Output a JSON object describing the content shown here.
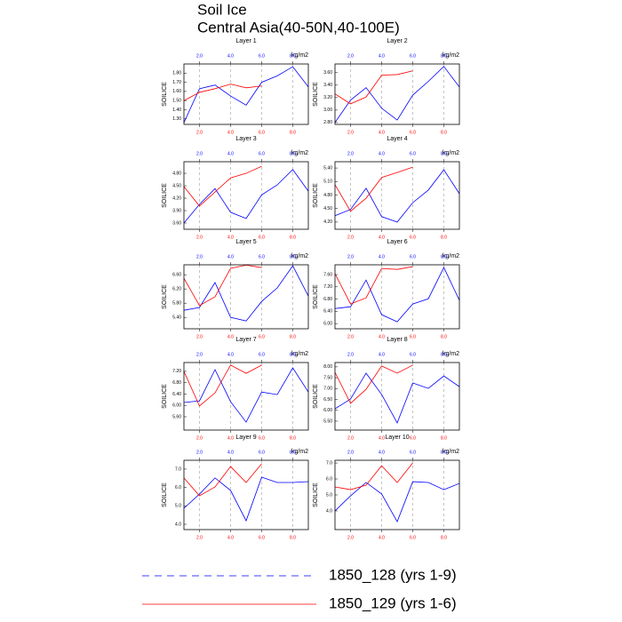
{
  "title": "Soil Ice",
  "subtitle": "Central Asia(40-50N,40-100E)",
  "chart_data": [
    {
      "type": "line",
      "title": "Layer 1",
      "ylabel": "SOILICE",
      "units": "kg/m2",
      "x": [
        1,
        2,
        3,
        4,
        5,
        6,
        7,
        8,
        9
      ],
      "xlim": [
        1,
        9
      ],
      "xticks": [
        {
          "value": 2,
          "label": "2.0"
        },
        {
          "value": 4,
          "label": "4.0"
        },
        {
          "value": 6,
          "label": "6.0"
        },
        {
          "value": 8,
          "label": "8.0"
        }
      ],
      "ylim": [
        1.24,
        1.9
      ],
      "yticks": [
        {
          "value": 1.3,
          "label": "1.30"
        },
        {
          "value": 1.4,
          "label": "1.40"
        },
        {
          "value": 1.5,
          "label": "1.50"
        },
        {
          "value": 1.6,
          "label": "1.60"
        },
        {
          "value": 1.7,
          "label": "1.70"
        },
        {
          "value": 1.8,
          "label": "1.80"
        }
      ],
      "series": [
        {
          "name": "1850_128 (yrs 1-9)",
          "color": "#0000ff",
          "values": [
            1.26,
            1.63,
            1.67,
            1.55,
            1.45,
            1.7,
            1.77,
            1.87,
            1.65
          ]
        },
        {
          "name": "1850_129 (yrs 1-6)",
          "color": "#ff0000",
          "values": [
            1.5,
            1.59,
            1.63,
            1.68,
            1.64,
            1.66,
            null,
            null,
            null
          ]
        }
      ]
    },
    {
      "type": "line",
      "title": "Layer 2",
      "ylabel": "SOILICE",
      "units": "kg/m2",
      "x": [
        1,
        2,
        3,
        4,
        5,
        6,
        7,
        8,
        9
      ],
      "xlim": [
        1,
        9
      ],
      "xticks": [
        {
          "value": 2,
          "label": "2.0"
        },
        {
          "value": 4,
          "label": "4.0"
        },
        {
          "value": 6,
          "label": "6.0"
        },
        {
          "value": 8,
          "label": "8.0"
        }
      ],
      "ylim": [
        2.77,
        3.74
      ],
      "yticks": [
        {
          "value": 2.8,
          "label": "2.80"
        },
        {
          "value": 3.0,
          "label": "3.00"
        },
        {
          "value": 3.2,
          "label": "3.20"
        },
        {
          "value": 3.4,
          "label": "3.40"
        },
        {
          "value": 3.6,
          "label": "3.60"
        }
      ],
      "series": [
        {
          "name": "1850_128 (yrs 1-9)",
          "color": "#0000ff",
          "values": [
            2.8,
            3.16,
            3.36,
            3.03,
            2.84,
            3.24,
            3.46,
            3.7,
            3.37
          ]
        },
        {
          "name": "1850_129 (yrs 1-6)",
          "color": "#ff0000",
          "values": [
            3.26,
            3.1,
            3.21,
            3.56,
            3.57,
            3.63,
            null,
            null,
            null
          ]
        }
      ]
    },
    {
      "type": "line",
      "title": "Layer 3",
      "ylabel": "SOILICE",
      "units": "kg/m2",
      "x": [
        1,
        2,
        3,
        4,
        5,
        6,
        7,
        8,
        9
      ],
      "xlim": [
        1,
        9
      ],
      "xticks": [
        {
          "value": 2,
          "label": "2.0"
        },
        {
          "value": 4,
          "label": "4.0"
        },
        {
          "value": 6,
          "label": "6.0"
        },
        {
          "value": 8,
          "label": "8.0"
        }
      ],
      "ylim": [
        3.45,
        5.08
      ],
      "yticks": [
        {
          "value": 3.6,
          "label": "3.60"
        },
        {
          "value": 3.9,
          "label": "3.90"
        },
        {
          "value": 4.2,
          "label": "4.20"
        },
        {
          "value": 4.5,
          "label": "4.50"
        },
        {
          "value": 4.8,
          "label": "4.80"
        }
      ],
      "series": [
        {
          "name": "1850_128 (yrs 1-9)",
          "color": "#0000ff",
          "values": [
            3.6,
            4.05,
            4.43,
            3.86,
            3.71,
            4.28,
            4.52,
            4.89,
            4.37
          ]
        },
        {
          "name": "1850_129 (yrs 1-6)",
          "color": "#ff0000",
          "values": [
            4.48,
            4.01,
            4.35,
            4.69,
            4.8,
            4.97,
            null,
            null,
            null
          ]
        }
      ]
    },
    {
      "type": "line",
      "title": "Layer 4",
      "ylabel": "SOILICE",
      "units": "kg/m2",
      "x": [
        1,
        2,
        3,
        4,
        5,
        6,
        7,
        8,
        9
      ],
      "xlim": [
        1,
        9
      ],
      "xticks": [
        {
          "value": 2,
          "label": "2.0"
        },
        {
          "value": 4,
          "label": "4.0"
        },
        {
          "value": 6,
          "label": "6.0"
        },
        {
          "value": 8,
          "label": "8.0"
        }
      ],
      "ylim": [
        4.04,
        5.54
      ],
      "yticks": [
        {
          "value": 4.2,
          "label": "4.20"
        },
        {
          "value": 4.5,
          "label": "4.50"
        },
        {
          "value": 4.8,
          "label": "4.80"
        },
        {
          "value": 5.1,
          "label": "5.10"
        },
        {
          "value": 5.4,
          "label": "5.40"
        }
      ],
      "series": [
        {
          "name": "1850_128 (yrs 1-9)",
          "color": "#0000ff",
          "values": [
            4.34,
            4.48,
            4.95,
            4.32,
            4.2,
            4.63,
            4.91,
            5.36,
            4.83
          ]
        },
        {
          "name": "1850_129 (yrs 1-6)",
          "color": "#ff0000",
          "values": [
            5.03,
            4.44,
            4.73,
            5.19,
            5.3,
            5.42,
            null,
            null,
            null
          ]
        }
      ]
    },
    {
      "type": "line",
      "title": "Layer 5",
      "ylabel": "SOILICE",
      "units": "kg/m2",
      "x": [
        1,
        2,
        3,
        4,
        5,
        6,
        7,
        8,
        9
      ],
      "xlim": [
        1,
        9
      ],
      "xticks": [
        {
          "value": 2,
          "label": "2.0"
        },
        {
          "value": 4,
          "label": "4.0"
        },
        {
          "value": 6,
          "label": "6.0"
        },
        {
          "value": 8,
          "label": "8.0"
        }
      ],
      "ylim": [
        5.08,
        6.88
      ],
      "yticks": [
        {
          "value": 5.4,
          "label": "5.40"
        },
        {
          "value": 5.8,
          "label": "5.80"
        },
        {
          "value": 6.2,
          "label": "6.20"
        },
        {
          "value": 6.6,
          "label": "6.60"
        }
      ],
      "series": [
        {
          "name": "1850_128 (yrs 1-9)",
          "color": "#0000ff",
          "values": [
            5.6,
            5.68,
            6.38,
            5.4,
            5.3,
            5.85,
            6.23,
            6.85,
            6.0
          ]
        },
        {
          "name": "1850_129 (yrs 1-6)",
          "color": "#ff0000",
          "values": [
            6.5,
            5.73,
            5.98,
            6.78,
            6.87,
            6.8,
            null,
            null,
            null
          ]
        }
      ]
    },
    {
      "type": "line",
      "title": "Layer 6",
      "ylabel": "SOILICE",
      "units": "kg/m2",
      "x": [
        1,
        2,
        3,
        4,
        5,
        6,
        7,
        8,
        9
      ],
      "xlim": [
        1,
        9
      ],
      "xticks": [
        {
          "value": 2,
          "label": "2.0"
        },
        {
          "value": 4,
          "label": "4.0"
        },
        {
          "value": 6,
          "label": "6.0"
        },
        {
          "value": 8,
          "label": "8.0"
        }
      ],
      "ylim": [
        5.83,
        7.92
      ],
      "yticks": [
        {
          "value": 6.0,
          "label": "6.00"
        },
        {
          "value": 6.4,
          "label": "6.40"
        },
        {
          "value": 6.8,
          "label": "6.80"
        },
        {
          "value": 7.2,
          "label": "7.20"
        },
        {
          "value": 7.6,
          "label": "7.60"
        }
      ],
      "series": [
        {
          "name": "1850_128 (yrs 1-9)",
          "color": "#0000ff",
          "values": [
            6.49,
            6.55,
            7.42,
            6.29,
            6.06,
            6.64,
            6.81,
            7.83,
            6.76
          ]
        },
        {
          "name": "1850_129 (yrs 1-6)",
          "color": "#ff0000",
          "values": [
            7.63,
            6.64,
            6.84,
            7.8,
            7.77,
            7.86,
            null,
            null,
            null
          ]
        }
      ]
    },
    {
      "type": "line",
      "title": "Layer 7",
      "ylabel": "SOILICE",
      "units": "kg/m2",
      "x": [
        1,
        2,
        3,
        4,
        5,
        6,
        7,
        8,
        9
      ],
      "xlim": [
        1,
        9
      ],
      "xticks": [
        {
          "value": 2,
          "label": "2.0"
        },
        {
          "value": 4,
          "label": "4.0"
        },
        {
          "value": 6,
          "label": "6.0"
        },
        {
          "value": 8,
          "label": "8.0"
        }
      ],
      "ylim": [
        5.13,
        7.51
      ],
      "yticks": [
        {
          "value": 5.6,
          "label": "5.60"
        },
        {
          "value": 6.0,
          "label": "6.00"
        },
        {
          "value": 6.4,
          "label": "6.40"
        },
        {
          "value": 6.8,
          "label": "6.80"
        },
        {
          "value": 7.2,
          "label": "7.20"
        }
      ],
      "series": [
        {
          "name": "1850_128 (yrs 1-9)",
          "color": "#0000ff",
          "values": [
            6.1,
            6.16,
            7.26,
            6.13,
            5.41,
            6.47,
            6.38,
            7.32,
            6.47
          ]
        },
        {
          "name": "1850_129 (yrs 1-6)",
          "color": "#ff0000",
          "values": [
            7.2,
            5.98,
            6.44,
            7.42,
            7.13,
            7.42,
            null,
            null,
            null
          ]
        }
      ]
    },
    {
      "type": "line",
      "title": "Layer 8",
      "ylabel": "SOILICE",
      "units": "kg/m2",
      "x": [
        1,
        2,
        3,
        4,
        5,
        6,
        7,
        8,
        9
      ],
      "xlim": [
        1,
        9
      ],
      "xticks": [
        {
          "value": 2,
          "label": "2.0"
        },
        {
          "value": 4,
          "label": "4.0"
        },
        {
          "value": 6,
          "label": "6.0"
        },
        {
          "value": 8,
          "label": "8.0"
        }
      ],
      "ylim": [
        5.09,
        8.2
      ],
      "yticks": [
        {
          "value": 5.5,
          "label": "5.50"
        },
        {
          "value": 6.0,
          "label": "6.00"
        },
        {
          "value": 6.5,
          "label": "6.50"
        },
        {
          "value": 7.0,
          "label": "7.00"
        },
        {
          "value": 7.5,
          "label": "7.50"
        },
        {
          "value": 8.0,
          "label": "8.00"
        }
      ],
      "series": [
        {
          "name": "1850_128 (yrs 1-9)",
          "color": "#0000ff",
          "values": [
            6.07,
            6.52,
            7.71,
            6.73,
            5.42,
            7.26,
            7.01,
            7.58,
            7.09
          ]
        },
        {
          "name": "1850_129 (yrs 1-6)",
          "color": "#ff0000",
          "values": [
            7.75,
            6.32,
            6.97,
            8.04,
            7.71,
            8.08,
            null,
            null,
            null
          ]
        }
      ]
    },
    {
      "type": "line",
      "title": "Layer 9",
      "ylabel": "SOILICE",
      "units": "kg/m2",
      "x": [
        1,
        2,
        3,
        4,
        5,
        6,
        7,
        8,
        9
      ],
      "xlim": [
        1,
        9
      ],
      "xticks": [
        {
          "value": 2,
          "label": "2.0"
        },
        {
          "value": 4,
          "label": "4.0"
        },
        {
          "value": 6,
          "label": "6.0"
        },
        {
          "value": 8,
          "label": "8.0"
        }
      ],
      "ylim": [
        3.71,
        7.48
      ],
      "yticks": [
        {
          "value": 4,
          "label": "4.0"
        },
        {
          "value": 5,
          "label": "5.0"
        },
        {
          "value": 6,
          "label": "6.0"
        },
        {
          "value": 7,
          "label": "7.0"
        }
      ],
      "series": [
        {
          "name": "1850_128 (yrs 1-9)",
          "color": "#0000ff",
          "values": [
            4.87,
            5.64,
            6.52,
            5.84,
            4.19,
            6.56,
            6.27,
            6.27,
            6.32
          ]
        },
        {
          "name": "1850_129 (yrs 1-6)",
          "color": "#ff0000",
          "values": [
            6.52,
            5.55,
            6.03,
            7.14,
            6.27,
            7.29,
            null,
            null,
            null
          ]
        }
      ]
    },
    {
      "type": "line",
      "title": "Layer 10",
      "ylabel": "SOILICE",
      "units": "kg/m2",
      "x": [
        1,
        2,
        3,
        4,
        5,
        6,
        7,
        8,
        9
      ],
      "xlim": [
        1,
        9
      ],
      "xticks": [
        {
          "value": 2,
          "label": "2.0"
        },
        {
          "value": 4,
          "label": "4.0"
        },
        {
          "value": 6,
          "label": "6.0"
        },
        {
          "value": 8,
          "label": "8.0"
        }
      ],
      "ylim": [
        2.83,
        7.17
      ],
      "yticks": [
        {
          "value": 4,
          "label": "4.0"
        },
        {
          "value": 5,
          "label": "5.0"
        },
        {
          "value": 6,
          "label": "6.0"
        },
        {
          "value": 7,
          "label": "7.0"
        }
      ],
      "series": [
        {
          "name": "1850_128 (yrs 1-9)",
          "color": "#0000ff",
          "values": [
            4.0,
            4.94,
            5.78,
            5.06,
            3.33,
            5.83,
            5.78,
            5.33,
            5.72
          ]
        },
        {
          "name": "1850_129 (yrs 1-6)",
          "color": "#ff0000",
          "values": [
            5.5,
            5.33,
            5.61,
            6.83,
            5.78,
            7.0,
            null,
            null,
            null
          ]
        }
      ]
    }
  ]
}
